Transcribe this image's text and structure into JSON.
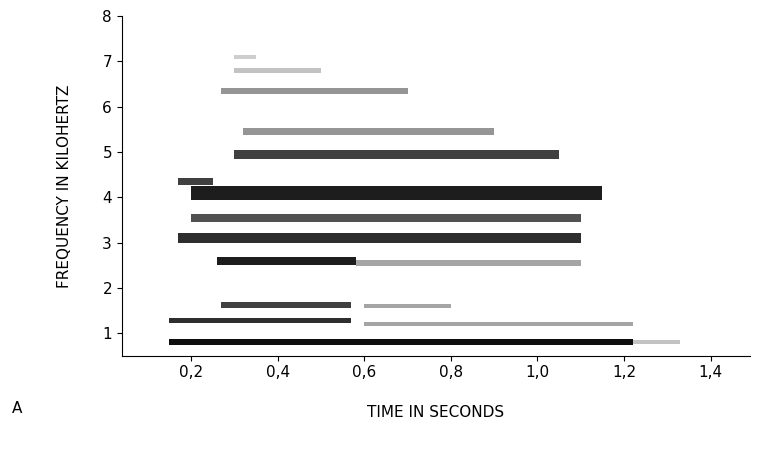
{
  "chart_data": {
    "type": "spectrogram",
    "panel_label": "A",
    "x_label": "TIME IN SECONDS",
    "y_label": "FREQUENCY IN KILOHERTZ",
    "xlim": [
      0.04,
      1.49
    ],
    "ylim": [
      0.5,
      8.0
    ],
    "xticks": [
      {
        "value": 0.2,
        "label": "0,2"
      },
      {
        "value": 0.4,
        "label": "0,4"
      },
      {
        "value": 0.6,
        "label": "0,6"
      },
      {
        "value": 0.8,
        "label": "0,8"
      },
      {
        "value": 1.0,
        "label": "1,0"
      },
      {
        "value": 1.2,
        "label": "1,2"
      },
      {
        "value": 1.4,
        "label": "1,4"
      }
    ],
    "yticks": [
      1,
      2,
      3,
      4,
      5,
      6,
      7,
      8
    ],
    "color": "#000000",
    "bands": [
      {
        "start": 0.15,
        "end": 1.22,
        "frequency": 0.8,
        "bandwidth": 0.12,
        "level": 0.95
      },
      {
        "start": 1.22,
        "end": 1.33,
        "frequency": 0.8,
        "bandwidth": 0.1,
        "level": 0.35
      },
      {
        "start": 0.15,
        "end": 0.57,
        "frequency": 1.28,
        "bandwidth": 0.12,
        "level": 0.85
      },
      {
        "start": 0.6,
        "end": 1.22,
        "frequency": 1.2,
        "bandwidth": 0.1,
        "level": 0.45
      },
      {
        "start": 0.27,
        "end": 0.57,
        "frequency": 1.62,
        "bandwidth": 0.12,
        "level": 0.8
      },
      {
        "start": 0.6,
        "end": 0.8,
        "frequency": 1.6,
        "bandwidth": 0.1,
        "level": 0.45
      },
      {
        "start": 0.26,
        "end": 0.58,
        "frequency": 2.6,
        "bandwidth": 0.18,
        "level": 0.9
      },
      {
        "start": 0.58,
        "end": 1.1,
        "frequency": 2.55,
        "bandwidth": 0.14,
        "level": 0.45
      },
      {
        "start": 0.17,
        "end": 1.1,
        "frequency": 3.1,
        "bandwidth": 0.2,
        "level": 0.85
      },
      {
        "start": 0.2,
        "end": 1.1,
        "frequency": 3.55,
        "bandwidth": 0.18,
        "level": 0.75
      },
      {
        "start": 0.2,
        "end": 1.15,
        "frequency": 4.1,
        "bandwidth": 0.3,
        "level": 0.9
      },
      {
        "start": 0.17,
        "end": 0.25,
        "frequency": 4.35,
        "bandwidth": 0.15,
        "level": 0.8
      },
      {
        "start": 0.3,
        "end": 1.05,
        "frequency": 4.95,
        "bandwidth": 0.2,
        "level": 0.8
      },
      {
        "start": 0.32,
        "end": 0.9,
        "frequency": 5.45,
        "bandwidth": 0.14,
        "level": 0.5
      },
      {
        "start": 0.27,
        "end": 0.7,
        "frequency": 6.35,
        "bandwidth": 0.14,
        "level": 0.5
      },
      {
        "start": 0.3,
        "end": 0.5,
        "frequency": 6.8,
        "bandwidth": 0.12,
        "level": 0.35
      },
      {
        "start": 0.3,
        "end": 0.35,
        "frequency": 7.1,
        "bandwidth": 0.1,
        "level": 0.3
      }
    ]
  }
}
